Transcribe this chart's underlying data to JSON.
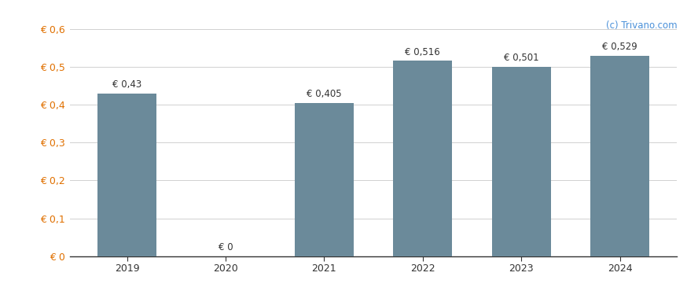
{
  "categories": [
    "2019",
    "2020",
    "2021",
    "2022",
    "2023",
    "2024"
  ],
  "values": [
    0.43,
    0.0,
    0.405,
    0.516,
    0.501,
    0.529
  ],
  "labels": [
    "€ 0,43",
    "€ 0",
    "€ 0,405",
    "€ 0,516",
    "€ 0,501",
    "€ 0,529"
  ],
  "bar_color": "#6b8a9a",
  "ylim": [
    0,
    0.6
  ],
  "yticks": [
    0.0,
    0.1,
    0.2,
    0.3,
    0.4,
    0.5,
    0.6
  ],
  "ytick_labels": [
    "€ 0",
    "€ 0,1",
    "€ 0,2",
    "€ 0,3",
    "€ 0,4",
    "€ 0,5",
    "€ 0,6"
  ],
  "background_color": "#ffffff",
  "grid_color": "#d0d0d0",
  "watermark": "(c) Trivano.com",
  "bar_width": 0.6,
  "label_fontsize": 8.5,
  "tick_fontsize": 9,
  "watermark_fontsize": 8.5,
  "axis_label_color": "#e07000",
  "tick_label_color": "#333333",
  "watermark_color": "#4a90d9"
}
